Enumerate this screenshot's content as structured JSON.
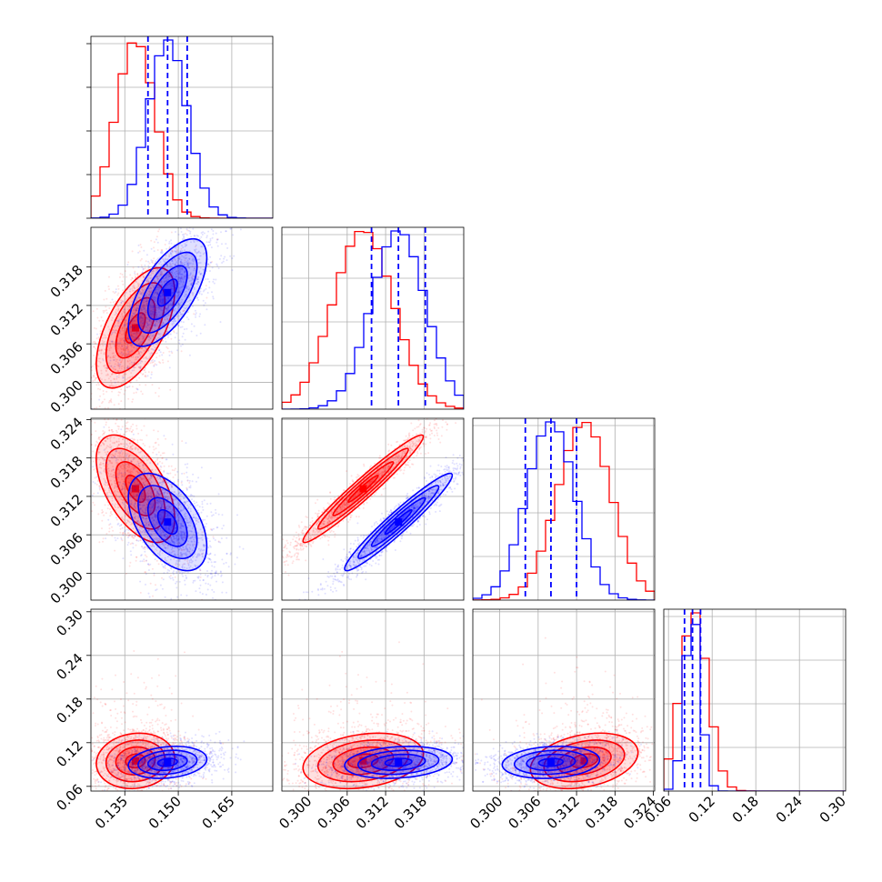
{
  "chart_data": {
    "type": "corner",
    "grid": true,
    "colors": {
      "red": "#ff0000",
      "blue": "#0000ff"
    },
    "series": [
      {
        "color": "red",
        "means": [
          0.138,
          0.3085,
          0.3132,
          0.095
        ],
        "sds": [
          0.0055,
          0.0047,
          0.0042,
          0.019
        ],
        "corr": {
          "0-1": 0.6,
          "0-2": -0.55,
          "1-2": 0.97,
          "0-3": 0.1,
          "1-3": 0.25,
          "2-3": 0.3
        }
      },
      {
        "color": "blue",
        "means": [
          0.147,
          0.314,
          0.308,
          0.093
        ],
        "sds": [
          0.0055,
          0.0042,
          0.0038,
          0.011
        ],
        "corr": {
          "0-1": 0.65,
          "0-2": -0.5,
          "1-2": 0.96,
          "0-3": 0.2,
          "1-3": 0.2,
          "2-3": 0.15
        }
      }
    ],
    "quantile_lines": {
      "color": "blue",
      "diag": [
        [
          0.1415,
          0.147,
          0.1525
        ],
        [
          0.3098,
          0.314,
          0.3182
        ],
        [
          0.304,
          0.308,
          0.312
        ],
        [
          0.082,
          0.093,
          0.104
        ]
      ]
    },
    "ranges": [
      [
        0.1255,
        0.1765
      ],
      [
        0.2958,
        0.3242
      ],
      [
        0.2958,
        0.3242
      ],
      [
        0.0535,
        0.3035
      ]
    ],
    "ticks": {
      "p0": [
        "0.135",
        "0.150",
        "0.165"
      ],
      "p1": [
        "0.300",
        "0.306",
        "0.312",
        "0.318"
      ],
      "p2": [
        "0.300",
        "0.306",
        "0.312",
        "0.318",
        "0.324"
      ],
      "p3": [
        "0.06",
        "0.12",
        "0.18",
        "0.24",
        "0.30"
      ]
    }
  }
}
